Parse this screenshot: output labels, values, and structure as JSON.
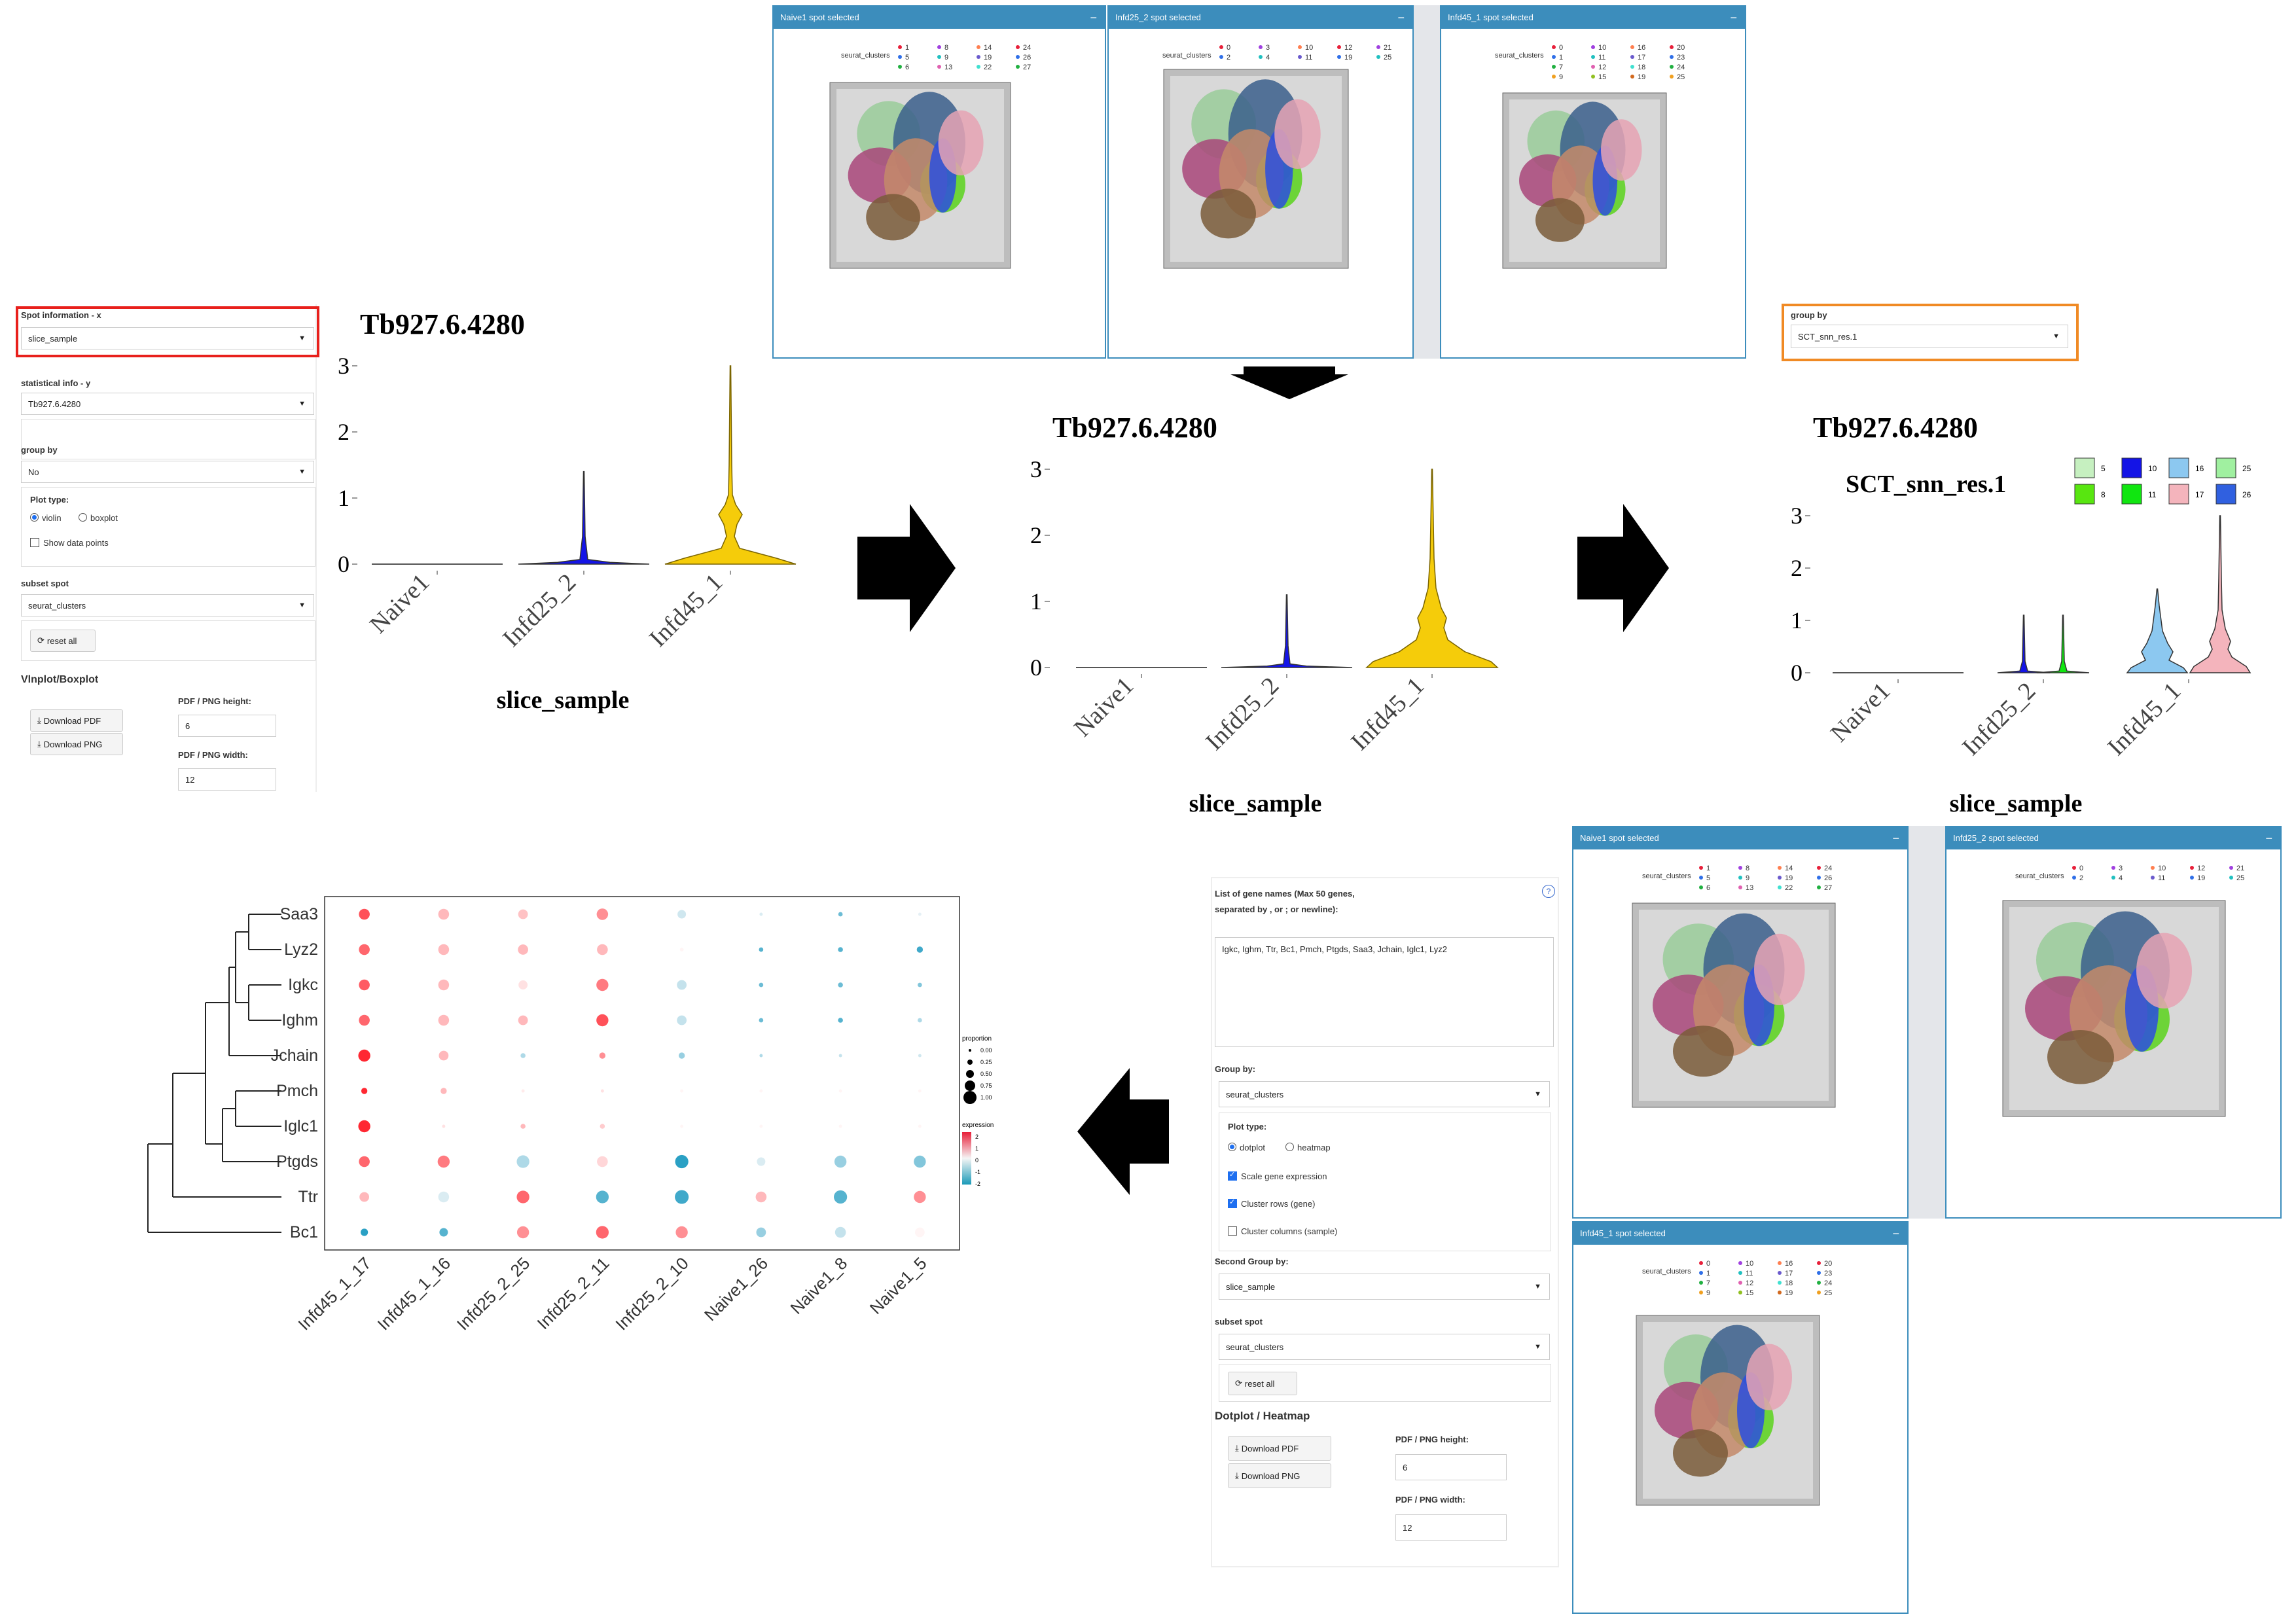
{
  "spatial_top": [
    {
      "title": "Naive1 spot selected",
      "legend_title": "seurat_clusters",
      "legend_cols": [
        [
          "1",
          "5",
          "6"
        ],
        [
          "8",
          "9",
          "13"
        ],
        [
          "14",
          "19",
          "22"
        ],
        [
          "24",
          "26",
          "27"
        ]
      ]
    },
    {
      "title": "Infd25_2 spot selected",
      "legend_title": "seurat_clusters",
      "legend_cols": [
        [
          "0",
          "2"
        ],
        [
          "3",
          "4"
        ],
        [
          "10",
          "11"
        ],
        [
          "12",
          "19"
        ],
        [
          "21",
          "25"
        ]
      ]
    },
    {
      "title": "Infd45_1 spot selected",
      "legend_title": "seurat_clusters",
      "legend_cols": [
        [
          "0",
          "1",
          "7",
          "9"
        ],
        [
          "10",
          "11",
          "12",
          "15"
        ],
        [
          "16",
          "17",
          "18",
          "19"
        ],
        [
          "20",
          "23",
          "24",
          "25"
        ]
      ]
    }
  ],
  "spatial_bottom": [
    {
      "title": "Naive1 spot selected",
      "legend_title": "seurat_clusters",
      "legend_cols": [
        [
          "1",
          "5",
          "6"
        ],
        [
          "8",
          "9",
          "13"
        ],
        [
          "14",
          "19",
          "22"
        ],
        [
          "24",
          "26",
          "27"
        ]
      ]
    },
    {
      "title": "Infd25_2 spot selected",
      "legend_title": "seurat_clusters",
      "legend_cols": [
        [
          "0",
          "2"
        ],
        [
          "3",
          "4"
        ],
        [
          "10",
          "11"
        ],
        [
          "12",
          "19"
        ],
        [
          "21",
          "25"
        ]
      ]
    },
    {
      "title": "Infd45_1 spot selected",
      "legend_title": "seurat_clusters",
      "legend_cols": [
        [
          "0",
          "1",
          "7",
          "9"
        ],
        [
          "10",
          "11",
          "12",
          "15"
        ],
        [
          "16",
          "17",
          "18",
          "19"
        ],
        [
          "20",
          "23",
          "24",
          "25"
        ]
      ]
    }
  ],
  "vln_sidebar": {
    "spot_info_label": "Spot information - x",
    "spot_info_value": "slice_sample",
    "stat_info_label": "statistical info - y",
    "stat_info_value": "Tb927.6.4280",
    "group_by_label": "group by",
    "group_by_value": "No",
    "plot_type_label": "Plot type:",
    "opt_violin": "violin",
    "opt_boxplot": "boxplot",
    "show_points": "Show data points",
    "subset_label": "subset spot",
    "subset_value": "seurat_clusters",
    "reset": "reset all",
    "section_title": "Vlnplot/Boxplot",
    "dl_pdf": "Download PDF",
    "dl_png": "Download PNG",
    "height_label": "PDF / PNG height:",
    "height_value": "6",
    "width_label": "PDF / PNG width:",
    "width_value": "12"
  },
  "group_by_box": {
    "label": "group by",
    "value": "SCT_snn_res.1"
  },
  "dot_sidebar": {
    "genes_label": "List of gene names (Max 50 genes, separated by , or ; or newline):",
    "genes_value": "Igkc, Ighm, Ttr, Bc1, Pmch, Ptgds, Saa3, Jchain, Iglc1, Lyz2",
    "help": "?",
    "group_label": "Group by:",
    "group_value": "seurat_clusters",
    "plot_type_label": "Plot type:",
    "opt_dotplot": "dotplot",
    "opt_heatmap": "heatmap",
    "scale": "Scale gene expression",
    "cluster_rows": "Cluster rows (gene)",
    "cluster_cols": "Cluster columns (sample)",
    "second_label": "Second Group by:",
    "second_value": "slice_sample",
    "subset_label": "subset spot",
    "subset_value": "seurat_clusters",
    "reset": "reset all",
    "section_title": "Dotplot / Heatmap",
    "dl_pdf": "Download PDF",
    "dl_png": "Download PNG",
    "height_label": "PDF / PNG height:",
    "height_value": "6",
    "width_label": "PDF / PNG width:",
    "width_value": "12"
  },
  "colors": {
    "header_blue": "#3c8dbc",
    "red_box": "#e8201c",
    "orange_box": "#f08a24",
    "violin": "#f5cc0a",
    "violin_edge": "#7a6400",
    "c5": "#c6f0c0",
    "c8": "#58e610",
    "c10": "#1414e6",
    "c11": "#10e610",
    "c16": "#8cc8f0",
    "c17": "#f4b4bc",
    "c25": "#a0f0a0",
    "c26": "#3060e0"
  },
  "chart_data": [
    {
      "type": "violin",
      "title": "Tb927.6.4280",
      "xlabel": "slice_sample",
      "ylabel": "",
      "categories": [
        "Naive1",
        "Infd25_2",
        "Infd45_1"
      ],
      "ylim": [
        0,
        3
      ],
      "yticks": [
        "0",
        "1",
        "2",
        "3"
      ],
      "max_values": [
        0,
        1.4,
        3.0
      ]
    },
    {
      "type": "violin",
      "title": "Tb927.6.4280",
      "xlabel": "slice_sample",
      "ylabel": "",
      "categories": [
        "Naive1",
        "Infd25_2",
        "Infd45_1"
      ],
      "ylim": [
        0,
        3
      ],
      "yticks": [
        "0",
        "1",
        "2",
        "3"
      ],
      "max_values": [
        0,
        1.1,
        3.0
      ]
    },
    {
      "type": "violin",
      "title": "Tb927.6.4280",
      "subtitle": "SCT_snn_res.1",
      "xlabel": "slice_sample",
      "ylabel": "",
      "categories": [
        "Naive1",
        "Infd25_2",
        "Infd45_1"
      ],
      "ylim": [
        0,
        3
      ],
      "yticks": [
        "0",
        "1",
        "2",
        "3"
      ],
      "legend_items": [
        "5",
        "8",
        "10",
        "11",
        "16",
        "17",
        "25",
        "26"
      ],
      "series": [
        {
          "name": "10",
          "category": "Infd25_2",
          "max": 1.1
        },
        {
          "name": "11",
          "category": "Infd25_2",
          "max": 1.1
        },
        {
          "name": "16",
          "category": "Infd45_1",
          "max": 1.6
        },
        {
          "name": "17",
          "category": "Infd45_1",
          "max": 3.0
        }
      ]
    },
    {
      "type": "dotplot",
      "genes": [
        "Saa3",
        "Lyz2",
        "Igkc",
        "Ighm",
        "Jchain",
        "Pmch",
        "Iglc1",
        "Ptgds",
        "Ttr",
        "Bc1"
      ],
      "samples": [
        "Infd45_1_17",
        "Infd45_1_16",
        "Infd25_2_25",
        "Infd25_2_11",
        "Infd25_2_10",
        "Naive1_26",
        "Naive1_8",
        "Naive1_5"
      ],
      "expression": [
        [
          1.6,
          0.6,
          0.5,
          1.0,
          -0.3,
          -0.2,
          -1.2,
          -0.1
        ],
        [
          1.4,
          0.6,
          0.6,
          0.6,
          0,
          -1.4,
          -1.4,
          -1.6
        ],
        [
          1.5,
          0.6,
          0.2,
          1.2,
          -0.4,
          -1.2,
          -1.2,
          -1.0
        ],
        [
          1.4,
          0.6,
          0.6,
          1.6,
          -0.4,
          -1.2,
          -1.4,
          -0.6
        ],
        [
          2.0,
          0.6,
          -0.6,
          1.0,
          -0.8,
          -0.6,
          -0.4,
          -0.3
        ],
        [
          2.0,
          0.6,
          0.1,
          0.2,
          0,
          0,
          0,
          0
        ],
        [
          2.5,
          0.2,
          0.6,
          0.4,
          0,
          0,
          0,
          0
        ],
        [
          1.4,
          1.2,
          -0.6,
          0.3,
          -1.8,
          -0.2,
          -0.8,
          -1.0
        ],
        [
          0.6,
          -0.2,
          1.4,
          -1.4,
          -1.6,
          0.6,
          -1.4,
          1.0
        ],
        [
          -1.8,
          -1.4,
          1.0,
          1.4,
          1.0,
          -0.8,
          -0.4,
          0
        ]
      ],
      "proportion": [
        [
          0.7,
          0.7,
          0.6,
          0.75,
          0.5,
          0.05,
          0.15,
          0.05
        ],
        [
          0.7,
          0.7,
          0.65,
          0.7,
          0.1,
          0.15,
          0.2,
          0.3
        ],
        [
          0.7,
          0.7,
          0.55,
          0.8,
          0.6,
          0.15,
          0.2,
          0.15
        ],
        [
          0.7,
          0.7,
          0.6,
          0.8,
          0.6,
          0.15,
          0.2,
          0.15
        ],
        [
          0.8,
          0.6,
          0.2,
          0.3,
          0.3,
          0.05,
          0.05,
          0.05
        ],
        [
          0.3,
          0.3,
          0.05,
          0.05,
          0.05,
          0.05,
          0.05,
          0.05
        ],
        [
          0.8,
          0.05,
          0.2,
          0.2,
          0.05,
          0.05,
          0.05,
          0.05
        ],
        [
          0.7,
          0.8,
          0.85,
          0.7,
          0.9,
          0.5,
          0.8,
          0.8
        ],
        [
          0.6,
          0.7,
          0.85,
          0.85,
          0.95,
          0.7,
          0.9,
          0.8
        ],
        [
          0.4,
          0.5,
          0.8,
          0.85,
          0.8,
          0.6,
          0.7,
          0.6
        ]
      ],
      "legend_proportion_title": "proportion",
      "legend_proportion": [
        "0.00",
        "0.25",
        "0.50",
        "0.75",
        "1.00"
      ],
      "legend_expression_title": "expression",
      "legend_expression": [
        "2",
        "1",
        "0",
        "-1",
        "-2"
      ]
    }
  ]
}
